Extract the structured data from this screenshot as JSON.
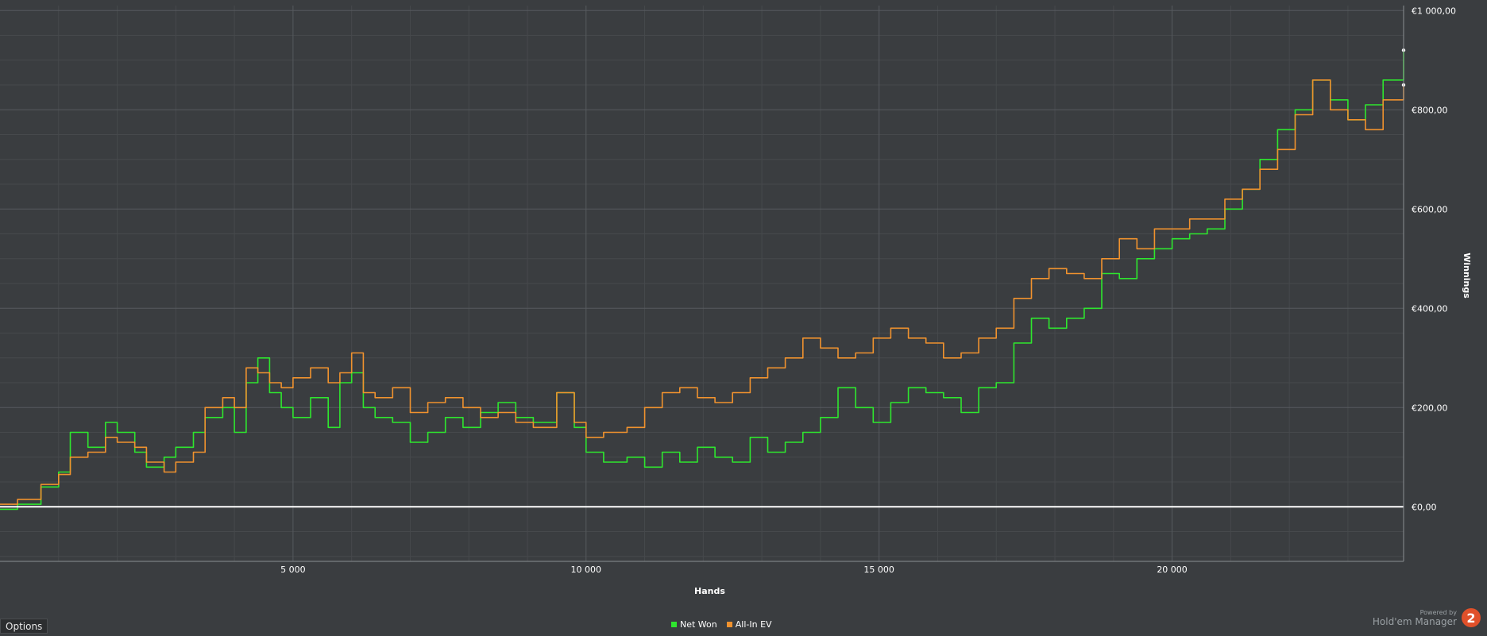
{
  "chart_data": {
    "type": "line",
    "xlabel": "Hands",
    "ylabel": "Winnings",
    "xlim": [
      0,
      23950
    ],
    "ylim": [
      -110,
      1010
    ],
    "x_ticks": [
      {
        "value": 5000,
        "label": "5 000"
      },
      {
        "value": 10000,
        "label": "10 000"
      },
      {
        "value": 15000,
        "label": "15 000"
      },
      {
        "value": 20000,
        "label": "20 000"
      }
    ],
    "y_ticks": [
      {
        "value": 0,
        "label": "€0,00"
      },
      {
        "value": 200,
        "label": "€200,00"
      },
      {
        "value": 400,
        "label": "€400,00"
      },
      {
        "value": 600,
        "label": "€600,00"
      },
      {
        "value": 800,
        "label": "€800,00"
      },
      {
        "value": 1000,
        "label": "€1 000,00"
      }
    ],
    "grid": true,
    "legend_position": "bottom-center",
    "series": [
      {
        "name": "Net Won",
        "color": "#2ee62e",
        "x": [
          0,
          300,
          700,
          1000,
          1200,
          1500,
          1800,
          2000,
          2300,
          2500,
          2800,
          3000,
          3300,
          3500,
          3800,
          4000,
          4200,
          4400,
          4600,
          4800,
          5000,
          5300,
          5600,
          5800,
          6000,
          6200,
          6400,
          6700,
          7000,
          7300,
          7600,
          7900,
          8200,
          8500,
          8800,
          9100,
          9500,
          9800,
          10000,
          10300,
          10700,
          11000,
          11300,
          11600,
          11900,
          12200,
          12500,
          12800,
          13100,
          13400,
          13700,
          14000,
          14300,
          14600,
          14900,
          15200,
          15500,
          15800,
          16100,
          16400,
          16700,
          17000,
          17300,
          17600,
          17900,
          18200,
          18500,
          18800,
          19100,
          19400,
          19700,
          20000,
          20300,
          20600,
          20900,
          21200,
          21500,
          21800,
          22100,
          22400,
          22700,
          23000,
          23300,
          23600,
          23950
        ],
        "values": [
          -5,
          5,
          40,
          70,
          150,
          120,
          170,
          150,
          110,
          80,
          100,
          120,
          150,
          180,
          200,
          150,
          250,
          300,
          230,
          200,
          180,
          220,
          160,
          250,
          270,
          200,
          180,
          170,
          130,
          150,
          180,
          160,
          190,
          210,
          180,
          170,
          230,
          160,
          110,
          90,
          100,
          80,
          110,
          90,
          120,
          100,
          90,
          140,
          110,
          130,
          150,
          180,
          240,
          200,
          170,
          210,
          240,
          230,
          220,
          190,
          240,
          250,
          330,
          380,
          360,
          380,
          400,
          470,
          460,
          500,
          520,
          540,
          550,
          560,
          600,
          640,
          700,
          760,
          800,
          860,
          820,
          780,
          810,
          860,
          920
        ]
      },
      {
        "name": "All-In EV",
        "color": "#f0922e",
        "x": [
          0,
          300,
          700,
          1000,
          1200,
          1500,
          1800,
          2000,
          2300,
          2500,
          2800,
          3000,
          3300,
          3500,
          3800,
          4000,
          4200,
          4400,
          4600,
          4800,
          5000,
          5300,
          5600,
          5800,
          6000,
          6200,
          6400,
          6700,
          7000,
          7300,
          7600,
          7900,
          8200,
          8500,
          8800,
          9100,
          9500,
          9800,
          10000,
          10300,
          10700,
          11000,
          11300,
          11600,
          11900,
          12200,
          12500,
          12800,
          13100,
          13400,
          13700,
          14000,
          14300,
          14600,
          14900,
          15200,
          15500,
          15800,
          16100,
          16400,
          16700,
          17000,
          17300,
          17600,
          17900,
          18200,
          18500,
          18800,
          19100,
          19400,
          19700,
          20000,
          20300,
          20600,
          20900,
          21200,
          21500,
          21800,
          22100,
          22400,
          22700,
          23000,
          23300,
          23600,
          23950
        ],
        "values": [
          5,
          15,
          45,
          65,
          100,
          110,
          140,
          130,
          120,
          90,
          70,
          90,
          110,
          200,
          220,
          200,
          280,
          270,
          250,
          240,
          260,
          280,
          250,
          270,
          310,
          230,
          220,
          240,
          190,
          210,
          220,
          200,
          180,
          190,
          170,
          160,
          230,
          170,
          140,
          150,
          160,
          200,
          230,
          240,
          220,
          210,
          230,
          260,
          280,
          300,
          340,
          320,
          300,
          310,
          340,
          360,
          340,
          330,
          300,
          310,
          340,
          360,
          420,
          460,
          480,
          470,
          460,
          500,
          540,
          520,
          560,
          560,
          580,
          580,
          620,
          640,
          680,
          720,
          790,
          860,
          800,
          780,
          760,
          820,
          850
        ]
      }
    ]
  },
  "ui": {
    "options_label": "Options",
    "brand_powered": "Powered by",
    "brand_name": "Hold'em Manager",
    "brand_badge": "2"
  }
}
